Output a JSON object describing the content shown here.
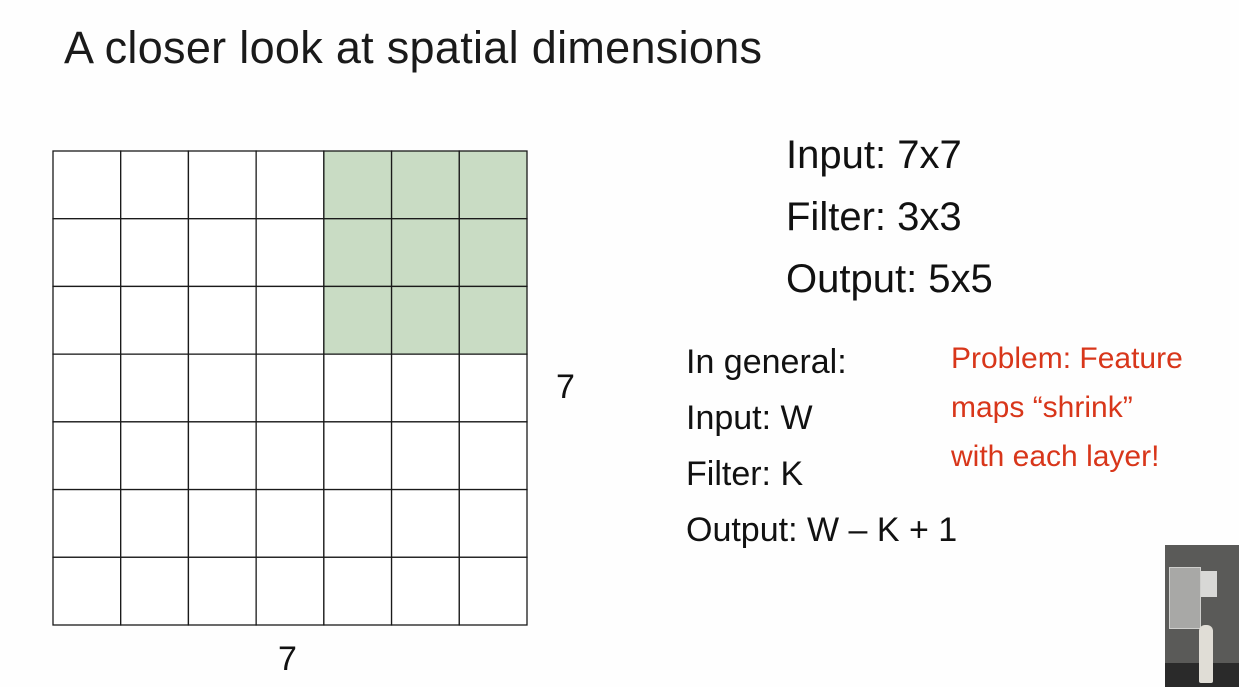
{
  "slide": {
    "title": "A closer look at spatial dimensions"
  },
  "grid": {
    "rows": 7,
    "cols": 7,
    "filter_size": 3,
    "highlight_row_start": 0,
    "highlight_col_start": 4,
    "highlight_color": "#c9dcc4",
    "line_color": "#1a1a1a",
    "row_label": "7",
    "col_label": "7"
  },
  "specs": {
    "input": "Input: 7x7",
    "filter": "Filter: 3x3",
    "output": "Output: 5x5"
  },
  "general": {
    "heading": "In general:",
    "input": "Input: W",
    "filter": "Filter: K",
    "output": "Output: W – K + 1"
  },
  "problem": {
    "line1": "Problem: Feature",
    "line2": "maps “shrink”",
    "line3": "with each layer!",
    "color": "#d8361a"
  }
}
